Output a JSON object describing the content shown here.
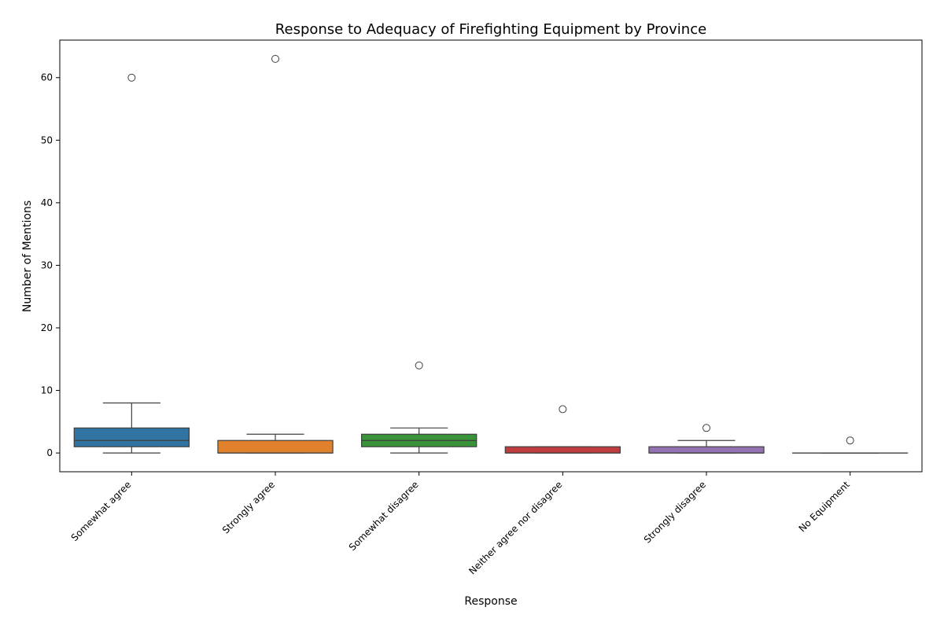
{
  "chart_data": {
    "type": "box",
    "title": "Response to Adequacy of Firefighting Equipment by Province",
    "xlabel": "Response",
    "ylabel": "Number of Mentions",
    "ylim": [
      -3,
      66
    ],
    "yticks": [
      0,
      10,
      20,
      30,
      40,
      50,
      60
    ],
    "grid": false,
    "categories": [
      "Somewhat agree",
      "Strongly agree",
      "Somewhat disagree",
      "Neither agree nor disagree",
      "Strongly disagree",
      "No Equipment"
    ],
    "boxes": [
      {
        "category": "Somewhat agree",
        "whisker_low": 0,
        "q1": 1,
        "median": 2,
        "q3": 4,
        "whisker_high": 8,
        "outliers": [
          60
        ],
        "color": "#3274a1"
      },
      {
        "category": "Strongly agree",
        "whisker_low": 0,
        "q1": 0,
        "median": 0,
        "q3": 2,
        "whisker_high": 3,
        "outliers": [
          63
        ],
        "color": "#e1812c"
      },
      {
        "category": "Somewhat disagree",
        "whisker_low": 0,
        "q1": 1,
        "median": 2,
        "q3": 3,
        "whisker_high": 4,
        "outliers": [
          14
        ],
        "color": "#3a923a"
      },
      {
        "category": "Neither agree nor disagree",
        "whisker_low": 0,
        "q1": 0,
        "median": 0,
        "q3": 1,
        "whisker_high": 1,
        "outliers": [
          7
        ],
        "color": "#c03d3e"
      },
      {
        "category": "Strongly disagree",
        "whisker_low": 0,
        "q1": 0,
        "median": 0,
        "q3": 1,
        "whisker_high": 2,
        "outliers": [
          4
        ],
        "color": "#9372b2"
      },
      {
        "category": "No Equipment",
        "whisker_low": 0,
        "q1": 0,
        "median": 0,
        "q3": 0,
        "whisker_high": 0,
        "outliers": [
          2
        ],
        "color": "#845b53"
      }
    ]
  }
}
